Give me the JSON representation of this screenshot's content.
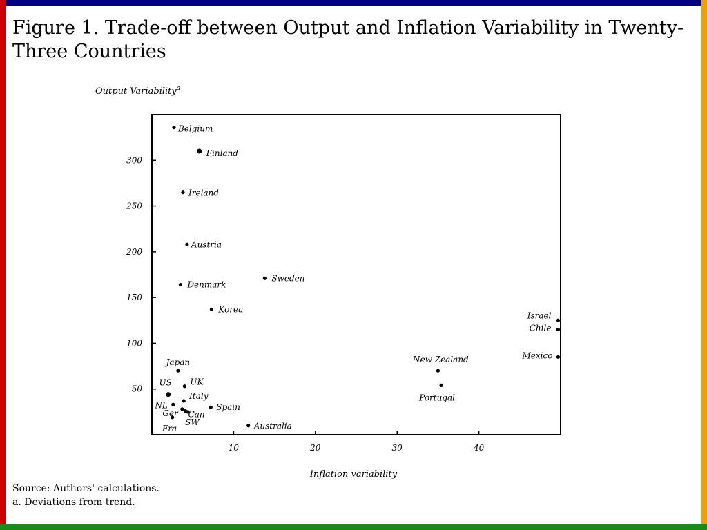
{
  "colors": {
    "top": "#00007f",
    "left": "#cc0000",
    "right": "#f0a000",
    "bottom": "#1a8a1a"
  },
  "chart_data": {
    "type": "scatter",
    "title": "Figure 1. Trade-off between Output and Inflation Variability in Twenty-Three Countries",
    "ylabel": "Output Variability",
    "ylabel_sup": "a",
    "xlabel": "Inflation variability",
    "xlim": [
      0,
      50
    ],
    "ylim": [
      0,
      350
    ],
    "xticks": [
      10,
      20,
      30,
      40
    ],
    "yticks": [
      50,
      100,
      150,
      200,
      250,
      300
    ],
    "grid": false,
    "points": [
      {
        "label": "Belgium",
        "x": 2.7,
        "y": 336
      },
      {
        "label": "Finland",
        "x": 5.8,
        "y": 310
      },
      {
        "label": "Ireland",
        "x": 3.8,
        "y": 265
      },
      {
        "label": "Austria",
        "x": 4.3,
        "y": 208
      },
      {
        "label": "Sweden",
        "x": 13.8,
        "y": 171
      },
      {
        "label": "Denmark",
        "x": 3.5,
        "y": 164
      },
      {
        "label": "Korea",
        "x": 7.3,
        "y": 137
      },
      {
        "label": "Japan",
        "x": 3.2,
        "y": 70
      },
      {
        "label": "US",
        "x": 2.0,
        "y": 44
      },
      {
        "label": "UK",
        "x": 4.0,
        "y": 53
      },
      {
        "label": "Italy",
        "x": 3.9,
        "y": 37
      },
      {
        "label": "NL",
        "x": 2.6,
        "y": 33
      },
      {
        "label": "Spain",
        "x": 7.2,
        "y": 30
      },
      {
        "label": "Ger",
        "x": 3.7,
        "y": 28
      },
      {
        "label": "Can",
        "x": 4.1,
        "y": 26
      },
      {
        "label": "SW",
        "x": 4.4,
        "y": 25
      },
      {
        "label": "Fra",
        "x": 2.5,
        "y": 19
      },
      {
        "label": "Australia",
        "x": 11.8,
        "y": 10
      },
      {
        "label": "New Zealand",
        "x": 35.0,
        "y": 70
      },
      {
        "label": "Portugal",
        "x": 35.4,
        "y": 54
      },
      {
        "label": "Israel",
        "x": 49.7,
        "y": 125
      },
      {
        "label": "Chile",
        "x": 49.7,
        "y": 115
      },
      {
        "label": "Mexico",
        "x": 49.7,
        "y": 85
      }
    ]
  },
  "notes": {
    "source": "Source: Authors' calculations.",
    "footnote": "a. Deviations from trend."
  }
}
